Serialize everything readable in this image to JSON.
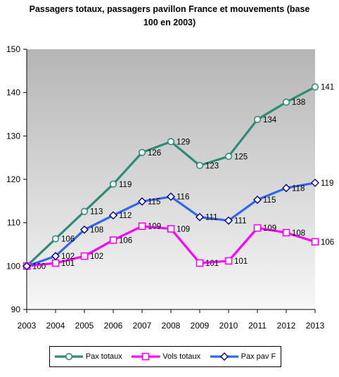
{
  "chart_data": {
    "type": "line",
    "title_line1": "Passagers totaux, passagers pavillon France et mouvements (base",
    "title_line2": "100 en 2003)",
    "x": [
      "2003",
      "2004",
      "2005",
      "2006",
      "2007",
      "2008",
      "2009",
      "2010",
      "2011",
      "2012",
      "2013"
    ],
    "ylim": [
      90,
      150
    ],
    "yticks": [
      90,
      100,
      110,
      120,
      130,
      140,
      150
    ],
    "grid": false,
    "legend_position": "bottom",
    "series": [
      {
        "name": "Pax totaux",
        "color": "#2e8b77",
        "marker": "circle",
        "values": [
          100,
          106.3,
          112.6,
          118.9,
          126.2,
          128.7,
          123.2,
          125.3,
          133.8,
          137.8,
          141.3
        ],
        "labels": [
          "100",
          "106",
          "113",
          "119",
          "126",
          "129",
          "123",
          "125",
          "134",
          "138",
          "141"
        ]
      },
      {
        "name": "Vols totaux",
        "color": "#ff00ff",
        "marker": "square",
        "values": [
          100,
          100.7,
          102.3,
          106.0,
          109.2,
          108.6,
          100.7,
          101.2,
          108.8,
          107.7,
          105.6
        ],
        "labels": [
          "100",
          "101",
          "102",
          "106",
          "109",
          "109",
          "101",
          "101",
          "109",
          "108",
          "106"
        ]
      },
      {
        "name": "Pax pav F",
        "color": "#3366ee",
        "marker": "diamond",
        "values": [
          100,
          102.3,
          108.4,
          111.7,
          114.9,
          116.0,
          111.3,
          110.5,
          115.3,
          118.0,
          119.2
        ],
        "labels": [
          "100",
          "102",
          "108",
          "112",
          "115",
          "116",
          "111",
          "111",
          "115",
          "118",
          "119"
        ]
      }
    ]
  }
}
